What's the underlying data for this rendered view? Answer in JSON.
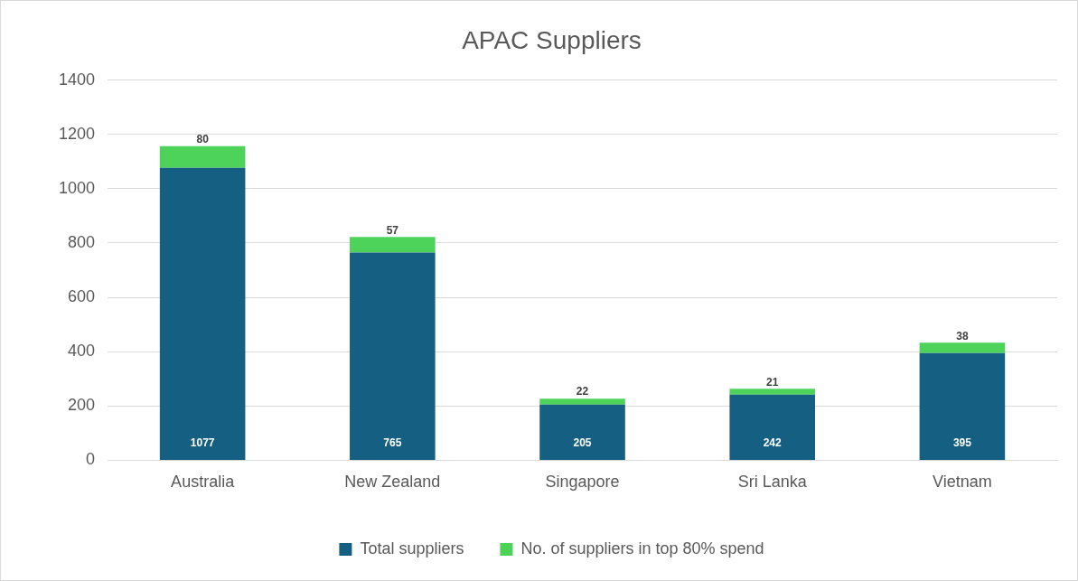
{
  "chart_data": {
    "type": "bar",
    "title": "APAC Suppliers",
    "categories": [
      "Australia",
      "New Zealand",
      "Singapore",
      "Sri Lanka",
      "Vietnam"
    ],
    "series": [
      {
        "name": "Total suppliers",
        "color": "#156082",
        "values": [
          1077,
          765,
          205,
          242,
          395
        ]
      },
      {
        "name": "No. of suppliers in top 80% spend",
        "color": "#4ed35a",
        "values": [
          80,
          57,
          22,
          21,
          38
        ]
      }
    ],
    "stacked": true,
    "ylim": [
      0,
      1400
    ],
    "yticks": [
      0,
      200,
      400,
      600,
      800,
      1000,
      1200,
      1400
    ],
    "grid": "y",
    "legend": "bottom",
    "data_labels": true
  }
}
